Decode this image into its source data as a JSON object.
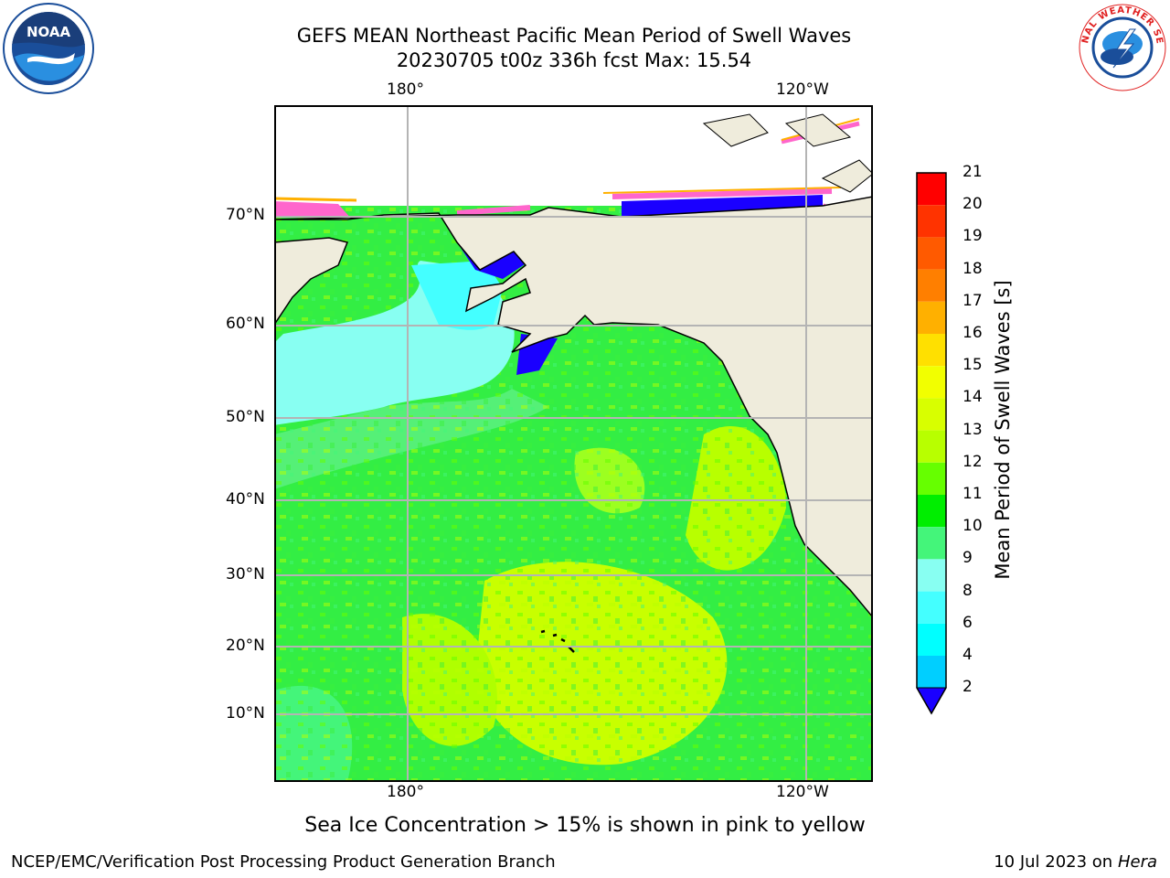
{
  "title_line1": "GEFS MEAN Northeast Pacific Mean Period of Swell Waves",
  "title_line2": "20230705 t00z 336h fcst   Max: 15.54",
  "map": {
    "lon_ticks": [
      "180°",
      "120°W"
    ],
    "lat_ticks": [
      "70°N",
      "60°N",
      "50°N",
      "40°N",
      "30°N",
      "20°N",
      "10°N"
    ],
    "land_color": "#efecdc",
    "grid_color": "#b4b4b4"
  },
  "colorbar": {
    "title": "Mean Period of Swell Waves [s]",
    "levels": [
      "21",
      "20",
      "19",
      "18",
      "17",
      "16",
      "15",
      "14",
      "13",
      "12",
      "11",
      "10",
      "9",
      "8",
      "6",
      "4",
      "2"
    ],
    "colors": [
      "#ff0000",
      "#ff3300",
      "#ff5a00",
      "#ff7f00",
      "#ffb000",
      "#ffe000",
      "#f2ff00",
      "#d8ff00",
      "#b8ff00",
      "#66ff00",
      "#00ee00",
      "#44f57a",
      "#88fff2",
      "#44ffff",
      "#00ffff",
      "#00cfff",
      "#0066ff"
    ],
    "extend_color": "#1a00ff"
  },
  "footnote": "Sea Ice Concentration > 15% is shown in pink to yellow",
  "footer": {
    "left": "NCEP/EMC/Verification Post Processing Product Generation Branch",
    "date": "10 Jul 2023 on ",
    "machine": "Hera"
  },
  "logos": {
    "left_text": "NOAA",
    "right_text": "NATIONAL WEATHER SERVICE"
  }
}
